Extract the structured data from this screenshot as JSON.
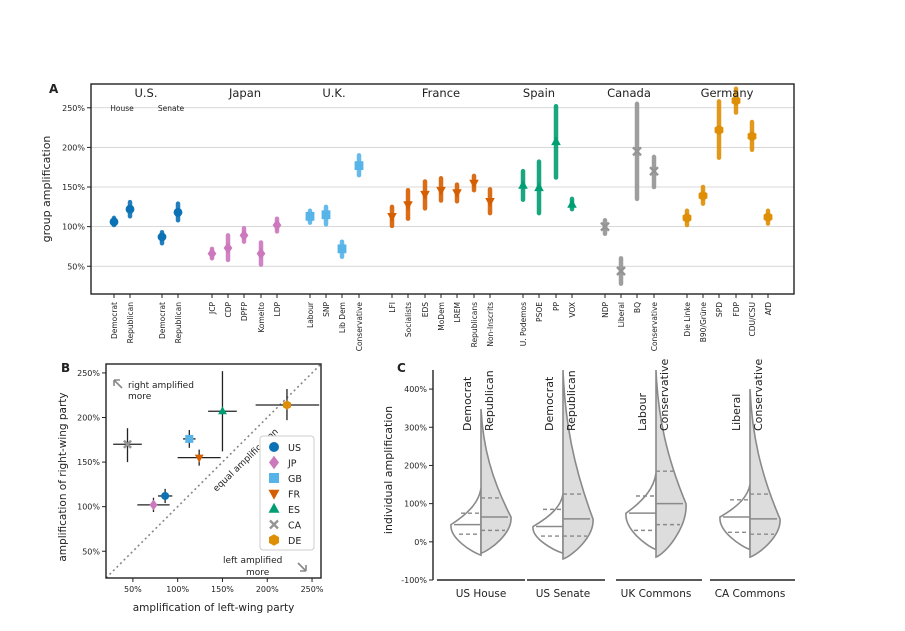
{
  "panel_labels": {
    "a": "A",
    "b": "B",
    "c": "C"
  },
  "colors": {
    "US": "#0b72b5",
    "JP": "#cc78bc",
    "GB": "#56b4e9",
    "FR": "#d55e00",
    "ES": "#029e73",
    "CA": "#949494",
    "DE": "#de8f05",
    "grid": "#cccccc",
    "violin_fill": "#dddddd",
    "violin_stroke": "#8a8a8a",
    "diagonal": "#888888"
  },
  "chart_data": [
    {
      "id": "A",
      "type": "scatter",
      "ylabel": "group amplification",
      "ylim": [
        15,
        280
      ],
      "yticks": [
        50,
        100,
        150,
        200,
        250
      ],
      "ytick_labels": [
        "50%",
        "100%",
        "150%",
        "200%",
        "250%"
      ],
      "grid": true,
      "countries": [
        {
          "name": "U.S.",
          "sublabels": [
            "House",
            "Senate"
          ]
        },
        {
          "name": "Japan"
        },
        {
          "name": "U.K."
        },
        {
          "name": "France"
        },
        {
          "name": "Spain"
        },
        {
          "name": "Canada"
        },
        {
          "name": "Germany"
        }
      ],
      "parties": [
        {
          "label": "Democrat",
          "group": "US",
          "marker": "circle",
          "value": 106,
          "low": 102,
          "high": 111
        },
        {
          "label": "Republican",
          "group": "US",
          "marker": "circle",
          "value": 122,
          "low": 113,
          "high": 131
        },
        {
          "label": "Democrat",
          "group": "US",
          "marker": "circle",
          "value": 87,
          "low": 79,
          "high": 93
        },
        {
          "label": "Republican",
          "group": "US",
          "marker": "circle",
          "value": 118,
          "low": 108,
          "high": 129
        },
        {
          "label": "JCP",
          "group": "JP",
          "marker": "diamond",
          "value": 66,
          "low": 60,
          "high": 72
        },
        {
          "label": "CDP",
          "group": "JP",
          "marker": "diamond",
          "value": 73,
          "low": 58,
          "high": 89
        },
        {
          "label": "DPFP",
          "group": "JP",
          "marker": "diamond",
          "value": 89,
          "low": 81,
          "high": 98
        },
        {
          "label": "Komeito",
          "group": "JP",
          "marker": "diamond",
          "value": 66,
          "low": 52,
          "high": 80
        },
        {
          "label": "LDP",
          "group": "JP",
          "marker": "diamond",
          "value": 102,
          "low": 94,
          "high": 110
        },
        {
          "label": "Labour",
          "group": "GB",
          "marker": "square",
          "value": 113,
          "low": 105,
          "high": 120
        },
        {
          "label": "SNP",
          "group": "GB",
          "marker": "square",
          "value": 115,
          "low": 103,
          "high": 125
        },
        {
          "label": "Lib Dem",
          "group": "GB",
          "marker": "square",
          "value": 72,
          "low": 62,
          "high": 81
        },
        {
          "label": "Conservative",
          "group": "GB",
          "marker": "square",
          "value": 177,
          "low": 165,
          "high": 190
        },
        {
          "label": "LFI",
          "group": "FR",
          "marker": "triangle-down",
          "value": 113,
          "low": 101,
          "high": 125
        },
        {
          "label": "Socialists",
          "group": "FR",
          "marker": "triangle-down",
          "value": 128,
          "low": 110,
          "high": 146
        },
        {
          "label": "EDS",
          "group": "FR",
          "marker": "triangle-down",
          "value": 141,
          "low": 123,
          "high": 157
        },
        {
          "label": "MoDem",
          "group": "FR",
          "marker": "triangle-down",
          "value": 146,
          "low": 133,
          "high": 161
        },
        {
          "label": "LREM",
          "group": "FR",
          "marker": "triangle-down",
          "value": 143,
          "low": 132,
          "high": 153
        },
        {
          "label": "Republicans",
          "group": "FR",
          "marker": "triangle-down",
          "value": 155,
          "low": 146,
          "high": 164
        },
        {
          "label": "Non-Inscrits",
          "group": "FR",
          "marker": "triangle-down",
          "value": 132,
          "low": 117,
          "high": 147
        },
        {
          "label": "U. Podemos",
          "group": "ES",
          "marker": "triangle",
          "value": 152,
          "low": 134,
          "high": 170
        },
        {
          "label": "PSOE",
          "group": "ES",
          "marker": "triangle",
          "value": 149,
          "low": 117,
          "high": 182
        },
        {
          "label": "PP",
          "group": "ES",
          "marker": "triangle",
          "value": 207,
          "low": 162,
          "high": 252
        },
        {
          "label": "VOX",
          "group": "ES",
          "marker": "triangle",
          "value": 128,
          "low": 122,
          "high": 135
        },
        {
          "label": "NDP",
          "group": "CA",
          "marker": "x",
          "value": 100,
          "low": 91,
          "high": 108
        },
        {
          "label": "Liberal",
          "group": "CA",
          "marker": "x",
          "value": 44,
          "low": 28,
          "high": 60
        },
        {
          "label": "BQ",
          "group": "CA",
          "marker": "x",
          "value": 195,
          "low": 135,
          "high": 255
        },
        {
          "label": "Conservative",
          "group": "CA",
          "marker": "x",
          "value": 170,
          "low": 150,
          "high": 188
        },
        {
          "label": "Die Linke",
          "group": "DE",
          "marker": "hexagon",
          "value": 111,
          "low": 102,
          "high": 120
        },
        {
          "label": "B90/Grüne",
          "group": "DE",
          "marker": "hexagon",
          "value": 139,
          "low": 129,
          "high": 150
        },
        {
          "label": "SPD",
          "group": "DE",
          "marker": "hexagon",
          "value": 222,
          "low": 187,
          "high": 258
        },
        {
          "label": "FDP",
          "group": "DE",
          "marker": "hexagon",
          "value": 259,
          "low": 244,
          "high": 274
        },
        {
          "label": "CDU/CSU",
          "group": "DE",
          "marker": "hexagon",
          "value": 214,
          "low": 197,
          "high": 232
        },
        {
          "label": "AfD",
          "group": "DE",
          "marker": "hexagon",
          "value": 112,
          "low": 104,
          "high": 120
        }
      ]
    },
    {
      "id": "B",
      "type": "scatter",
      "xlabel": "amplification of left-wing party",
      "ylabel": "amplification of right-wing party",
      "xlim": [
        20,
        260
      ],
      "ylim": [
        20,
        260
      ],
      "xticks": [
        50,
        100,
        150,
        200,
        250
      ],
      "xtick_labels": [
        "50%",
        "100%",
        "150%",
        "200%",
        "250%"
      ],
      "yticks": [
        50,
        100,
        150,
        200,
        250
      ],
      "ytick_labels": [
        "50%",
        "100%",
        "150%",
        "200%",
        "250%"
      ],
      "diagonal_label": "equal amplification",
      "annotations": {
        "top_left": [
          "right amplified",
          "more"
        ],
        "bottom_right": [
          "left amplified",
          "more"
        ]
      },
      "legend": {
        "placement": "right",
        "entries": [
          {
            "key": "US",
            "label": "US",
            "marker": "circle"
          },
          {
            "key": "JP",
            "label": "JP",
            "marker": "diamond"
          },
          {
            "key": "GB",
            "label": "GB",
            "marker": "square"
          },
          {
            "key": "FR",
            "label": "FR",
            "marker": "triangle-down"
          },
          {
            "key": "ES",
            "label": "ES",
            "marker": "triangle"
          },
          {
            "key": "CA",
            "label": "CA",
            "marker": "x"
          },
          {
            "key": "DE",
            "label": "DE",
            "marker": "hexagon"
          }
        ]
      },
      "points": [
        {
          "group": "US",
          "x": 86,
          "y": 112,
          "xerr": [
            78,
            94
          ],
          "yerr": [
            104,
            120
          ]
        },
        {
          "group": "JP",
          "x": 73,
          "y": 102,
          "xerr": [
            55,
            91
          ],
          "yerr": [
            94,
            110
          ]
        },
        {
          "group": "GB",
          "x": 113,
          "y": 176,
          "xerr": [
            106,
            120
          ],
          "yerr": [
            166,
            186
          ]
        },
        {
          "group": "FR",
          "x": 124,
          "y": 155,
          "xerr": [
            100,
            148
          ],
          "yerr": [
            146,
            164
          ]
        },
        {
          "group": "ES",
          "x": 150,
          "y": 207,
          "xerr": [
            134,
            166
          ],
          "yerr": [
            162,
            252
          ]
        },
        {
          "group": "CA",
          "x": 44,
          "y": 170,
          "xerr": [
            28,
            60
          ],
          "yerr": [
            150,
            188
          ]
        },
        {
          "group": "DE",
          "x": 222,
          "y": 214,
          "xerr": [
            187,
            258
          ],
          "yerr": [
            197,
            232
          ]
        }
      ]
    },
    {
      "id": "C",
      "type": "violin",
      "ylabel": "individual amplification",
      "ylim": [
        -100,
        450
      ],
      "yticks": [
        -100,
        0,
        100,
        200,
        300,
        400
      ],
      "ytick_labels": [
        "-100%",
        "0%",
        "100%",
        "200%",
        "300%",
        "400%"
      ],
      "groups": [
        {
          "label": "US House",
          "left": {
            "name": "Democrat",
            "min": -35,
            "max": 140,
            "median": 45,
            "q1": 20,
            "q3": 75
          },
          "right": {
            "name": "Republican",
            "min": -30,
            "max": 348,
            "median": 65,
            "q1": 30,
            "q3": 115
          }
        },
        {
          "label": "US Senate",
          "left": {
            "name": "Democrat",
            "min": -30,
            "max": 125,
            "median": 40,
            "q1": 15,
            "q3": 85
          },
          "right": {
            "name": "Republican",
            "min": -45,
            "max": 450,
            "median": 60,
            "q1": 15,
            "q3": 125
          }
        },
        {
          "label": "UK Commons",
          "left": {
            "name": "Labour",
            "min": -20,
            "max": 180,
            "median": 75,
            "q1": 30,
            "q3": 120
          },
          "right": {
            "name": "Conservative",
            "min": -40,
            "max": 450,
            "median": 100,
            "q1": 45,
            "q3": 185
          }
        },
        {
          "label": "CA Commons",
          "left": {
            "name": "Liberal",
            "min": -20,
            "max": 150,
            "median": 65,
            "q1": 25,
            "q3": 110
          },
          "right": {
            "name": "Conservative",
            "min": -40,
            "max": 400,
            "median": 60,
            "q1": 20,
            "q3": 125
          }
        }
      ]
    }
  ]
}
